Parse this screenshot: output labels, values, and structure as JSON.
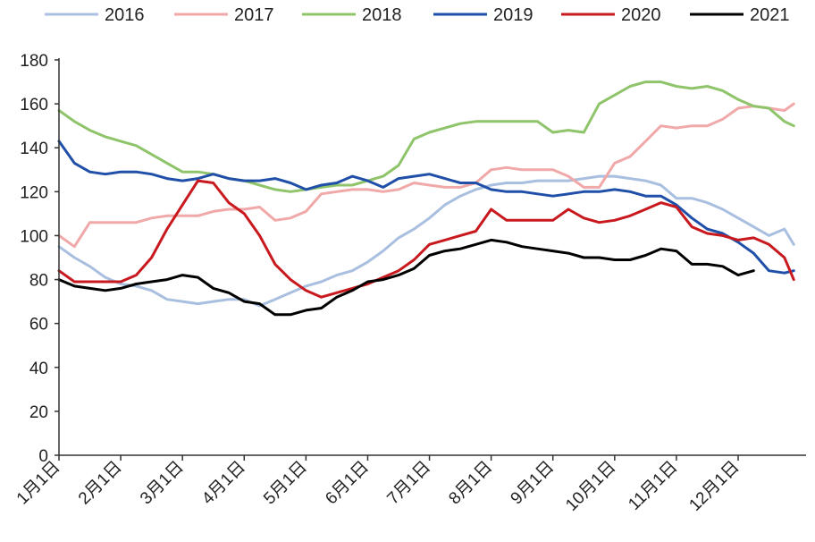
{
  "chart_data": {
    "type": "line",
    "title": "",
    "xlabel": "",
    "ylabel": "",
    "ylim": [
      0,
      180
    ],
    "yticks": [
      "0",
      "20",
      "40",
      "60",
      "80",
      "100",
      "120",
      "140",
      "160",
      "180"
    ],
    "x_range": [
      0,
      12
    ],
    "x_ticks": [
      {
        "x": 0,
        "label": "1月1日"
      },
      {
        "x": 1,
        "label": "2月1日"
      },
      {
        "x": 2,
        "label": "3月1日"
      },
      {
        "x": 3,
        "label": "4月1日"
      },
      {
        "x": 4,
        "label": "5月1日"
      },
      {
        "x": 5,
        "label": "6月1日"
      },
      {
        "x": 6,
        "label": "7月1日"
      },
      {
        "x": 7,
        "label": "8月1日"
      },
      {
        "x": 8,
        "label": "9月1日"
      },
      {
        "x": 9,
        "label": "10月1日"
      },
      {
        "x": 10,
        "label": "11月1日"
      },
      {
        "x": 11,
        "label": "12月1日"
      }
    ],
    "legend_position": "top",
    "series": [
      {
        "name": "2016",
        "color": "#a9bfe0",
        "x": [
          0,
          0.25,
          0.5,
          0.75,
          1,
          1.25,
          1.5,
          1.75,
          2,
          2.25,
          2.5,
          2.75,
          3,
          3.25,
          3.5,
          3.75,
          4,
          4.25,
          4.5,
          4.75,
          5,
          5.25,
          5.5,
          5.75,
          6,
          6.25,
          6.5,
          6.75,
          7,
          7.25,
          7.5,
          7.75,
          8,
          8.25,
          8.5,
          8.75,
          9,
          9.25,
          9.5,
          9.75,
          10,
          10.25,
          10.5,
          10.75,
          11,
          11.25,
          11.5,
          11.75,
          11.9
        ],
        "y": [
          95,
          90,
          86,
          81,
          78,
          77,
          75,
          71,
          70,
          69,
          70,
          71,
          71,
          68,
          71,
          74,
          77,
          79,
          82,
          84,
          88,
          93,
          99,
          103,
          108,
          114,
          118,
          121,
          123,
          124,
          124,
          125,
          125,
          125,
          126,
          127,
          127,
          126,
          125,
          123,
          117,
          117,
          115,
          112,
          108,
          104,
          100,
          103,
          96
        ]
      },
      {
        "name": "2017",
        "color": "#f0a8a8",
        "x": [
          0,
          0.25,
          0.5,
          0.75,
          1,
          1.25,
          1.5,
          1.75,
          2,
          2.25,
          2.5,
          2.75,
          3,
          3.25,
          3.5,
          3.75,
          4,
          4.25,
          4.5,
          4.75,
          5,
          5.25,
          5.5,
          5.75,
          6,
          6.25,
          6.5,
          6.75,
          7,
          7.25,
          7.5,
          7.75,
          8,
          8.25,
          8.5,
          8.75,
          9,
          9.25,
          9.5,
          9.75,
          10,
          10.25,
          10.5,
          10.75,
          11,
          11.25,
          11.5,
          11.75,
          11.9
        ],
        "y": [
          100,
          95,
          106,
          106,
          106,
          106,
          108,
          109,
          109,
          109,
          111,
          112,
          112,
          113,
          107,
          108,
          111,
          119,
          120,
          121,
          121,
          120,
          121,
          124,
          123,
          122,
          122,
          124,
          130,
          131,
          130,
          130,
          130,
          127,
          122,
          122,
          133,
          136,
          143,
          150,
          149,
          150,
          150,
          153,
          158,
          159,
          158,
          157,
          160
        ]
      },
      {
        "name": "2018",
        "color": "#8fc46a",
        "x": [
          0,
          0.25,
          0.5,
          0.75,
          1,
          1.25,
          1.5,
          1.75,
          2,
          2.25,
          2.5,
          2.75,
          3,
          3.25,
          3.5,
          3.75,
          4,
          4.25,
          4.5,
          4.75,
          5,
          5.25,
          5.5,
          5.75,
          6,
          6.25,
          6.5,
          6.75,
          7,
          7.25,
          7.5,
          7.75,
          8,
          8.25,
          8.5,
          8.75,
          9,
          9.25,
          9.5,
          9.75,
          10,
          10.25,
          10.5,
          10.75,
          11,
          11.25,
          11.5,
          11.75,
          11.9
        ],
        "y": [
          157,
          152,
          148,
          145,
          143,
          141,
          137,
          133,
          129,
          129,
          128,
          126,
          125,
          123,
          121,
          120,
          121,
          122,
          123,
          123,
          125,
          127,
          132,
          144,
          147,
          149,
          151,
          152,
          152,
          152,
          152,
          152,
          147,
          148,
          147,
          160,
          164,
          168,
          170,
          170,
          168,
          167,
          168,
          166,
          162,
          159,
          158,
          152,
          150
        ]
      },
      {
        "name": "2019",
        "color": "#1f4fa8",
        "x": [
          0,
          0.25,
          0.5,
          0.75,
          1,
          1.25,
          1.5,
          1.75,
          2,
          2.25,
          2.5,
          2.75,
          3,
          3.25,
          3.5,
          3.75,
          4,
          4.25,
          4.5,
          4.75,
          5,
          5.25,
          5.5,
          5.75,
          6,
          6.25,
          6.5,
          6.75,
          7,
          7.25,
          7.5,
          7.75,
          8,
          8.25,
          8.5,
          8.75,
          9,
          9.25,
          9.5,
          9.75,
          10,
          10.25,
          10.5,
          10.75,
          11,
          11.25,
          11.5,
          11.75,
          11.9
        ],
        "y": [
          143,
          133,
          129,
          128,
          129,
          129,
          128,
          126,
          125,
          126,
          128,
          126,
          125,
          125,
          126,
          124,
          121,
          123,
          124,
          127,
          125,
          122,
          126,
          127,
          128,
          126,
          124,
          124,
          121,
          120,
          120,
          119,
          118,
          119,
          120,
          120,
          121,
          120,
          118,
          118,
          114,
          108,
          103,
          101,
          97,
          92,
          84,
          83,
          84
        ]
      },
      {
        "name": "2020",
        "color": "#c8191f",
        "x": [
          0,
          0.25,
          0.5,
          0.75,
          1,
          1.25,
          1.5,
          1.75,
          2,
          2.25,
          2.5,
          2.75,
          3,
          3.25,
          3.5,
          3.75,
          4,
          4.25,
          4.5,
          4.75,
          5,
          5.25,
          5.5,
          5.75,
          6,
          6.25,
          6.5,
          6.75,
          7,
          7.25,
          7.5,
          7.75,
          8,
          8.25,
          8.5,
          8.75,
          9,
          9.25,
          9.5,
          9.75,
          10,
          10.25,
          10.5,
          10.75,
          11,
          11.25,
          11.5,
          11.75,
          11.9
        ],
        "y": [
          84,
          79,
          79,
          79,
          79,
          82,
          90,
          103,
          114,
          125,
          124,
          115,
          110,
          100,
          87,
          80,
          75,
          72,
          74,
          76,
          78,
          81,
          84,
          89,
          96,
          98,
          100,
          102,
          112,
          107,
          107,
          107,
          107,
          112,
          108,
          106,
          107,
          109,
          112,
          115,
          113,
          104,
          101,
          100,
          98,
          99,
          96,
          90,
          80
        ]
      },
      {
        "name": "2021",
        "color": "#000000",
        "x": [
          0,
          0.25,
          0.5,
          0.75,
          1,
          1.25,
          1.5,
          1.75,
          2,
          2.25,
          2.5,
          2.75,
          3,
          3.25,
          3.5,
          3.75,
          4,
          4.25,
          4.5,
          4.75,
          5,
          5.25,
          5.5,
          5.75,
          6,
          6.25,
          6.5,
          6.75,
          7,
          7.25,
          7.5,
          7.75,
          8,
          8.25,
          8.5,
          8.75,
          9,
          9.25,
          9.5,
          9.75,
          10,
          10.25,
          10.5,
          10.75,
          11,
          11.25
        ],
        "y": [
          80,
          77,
          76,
          75,
          76,
          78,
          79,
          80,
          82,
          81,
          76,
          74,
          70,
          69,
          64,
          64,
          66,
          67,
          72,
          75,
          79,
          80,
          82,
          85,
          91,
          93,
          94,
          96,
          98,
          97,
          95,
          94,
          93,
          92,
          90,
          90,
          89,
          89,
          91,
          94,
          93,
          87,
          87,
          86,
          82,
          84
        ]
      }
    ]
  }
}
